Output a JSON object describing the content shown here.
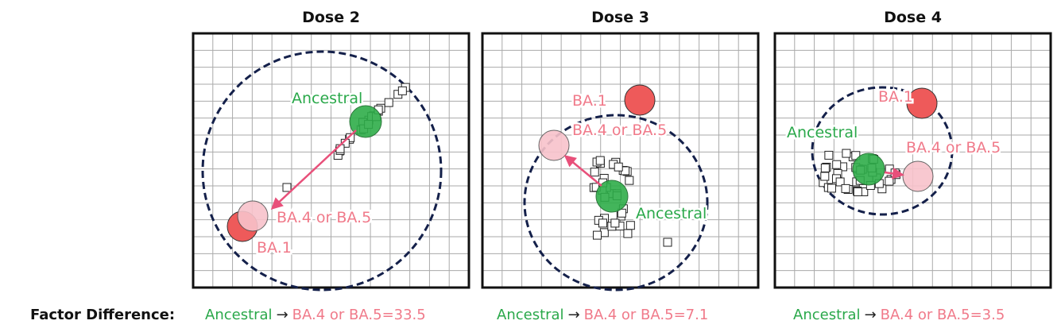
{
  "panels": [
    {
      "title": "Dose 2",
      "labels": {
        "ancestral": "Ancestral",
        "ba45": "BA.4 or BA.5",
        "ba1": "BA.1"
      },
      "factor": {
        "from": "Ancestral",
        "arrow": "→",
        "to": "BA.4 or BA.5",
        "equals": "=",
        "value": 33.5
      }
    },
    {
      "title": "Dose 3",
      "labels": {
        "ancestral": "Ancestral",
        "ba45": "BA.4 or BA.5",
        "ba1": "BA.1"
      },
      "factor": {
        "from": "Ancestral",
        "arrow": "→",
        "to": "BA.4 or BA.5",
        "equals": "=",
        "value": 7.1
      }
    },
    {
      "title": "Dose 4",
      "labels": {
        "ancestral": "Ancestral",
        "ba45": "BA.4 or BA.5",
        "ba1": "BA.1"
      },
      "factor": {
        "from": "Ancestral",
        "arrow": "→",
        "to": "BA.4 or BA.5",
        "equals": "=",
        "value": 3.5
      }
    }
  ],
  "footer": {
    "label": "Factor Difference:"
  }
}
